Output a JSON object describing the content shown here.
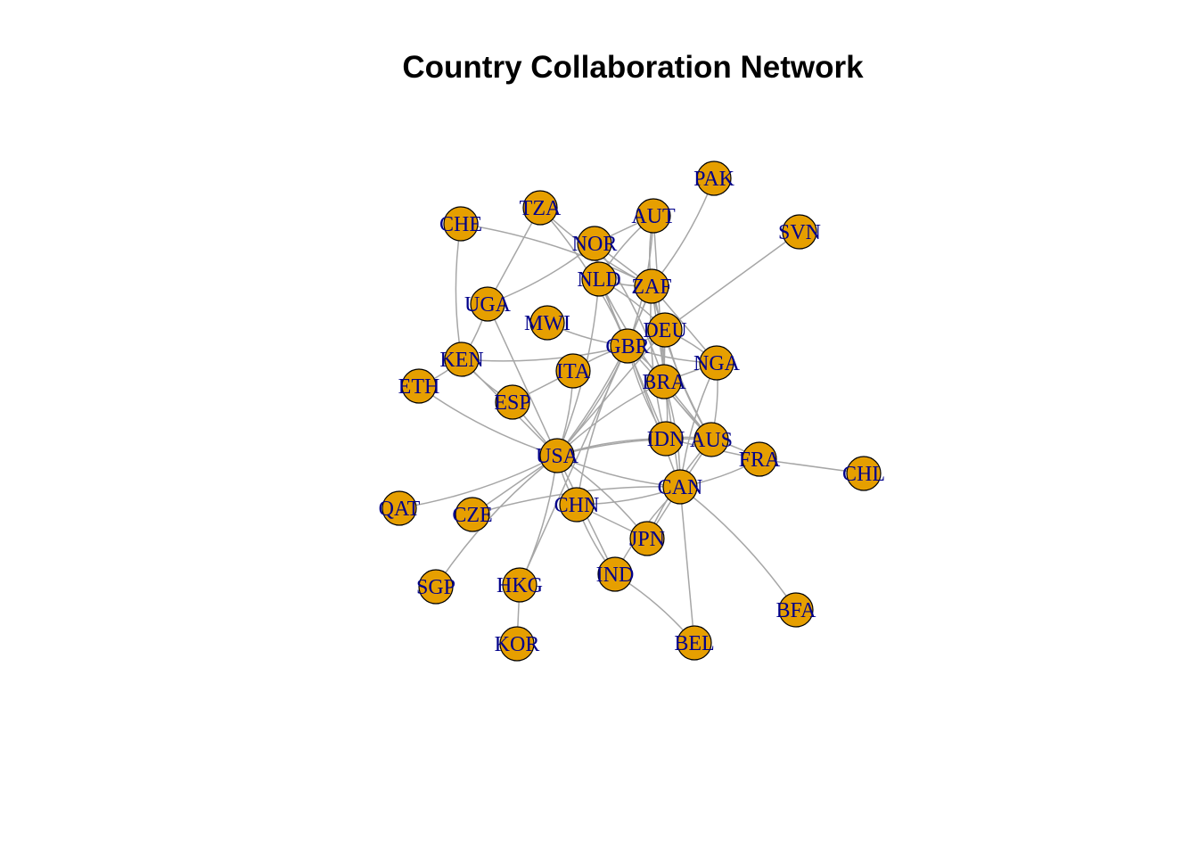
{
  "title": "Country Collaboration Network",
  "colors": {
    "node_fill": "#e69f00",
    "label": "#00008b",
    "edge": "#a6a6a6"
  },
  "nodes": [
    {
      "id": "PAK",
      "label": "PAK"
    },
    {
      "id": "TZA",
      "label": "TZA"
    },
    {
      "id": "AUT",
      "label": "AUT"
    },
    {
      "id": "CHE",
      "label": "CHE"
    },
    {
      "id": "SVN",
      "label": "SVN"
    },
    {
      "id": "NOR",
      "label": "NOR"
    },
    {
      "id": "NLD",
      "label": "NLD"
    },
    {
      "id": "ZAF",
      "label": "ZAF"
    },
    {
      "id": "UGA",
      "label": "UGA"
    },
    {
      "id": "MWI",
      "label": "MWI"
    },
    {
      "id": "DEU",
      "label": "DEU"
    },
    {
      "id": "GBR",
      "label": "GBR"
    },
    {
      "id": "KEN",
      "label": "KEN"
    },
    {
      "id": "NGA",
      "label": "NGA"
    },
    {
      "id": "ITA",
      "label": "ITA"
    },
    {
      "id": "ETH",
      "label": "ETH"
    },
    {
      "id": "BRA",
      "label": "BRA"
    },
    {
      "id": "ESP",
      "label": "ESP"
    },
    {
      "id": "IDN",
      "label": "IDN"
    },
    {
      "id": "AUS",
      "label": "AUS"
    },
    {
      "id": "USA",
      "label": "USA"
    },
    {
      "id": "FRA",
      "label": "FRA"
    },
    {
      "id": "CHL",
      "label": "CHL"
    },
    {
      "id": "CAN",
      "label": "CAN"
    },
    {
      "id": "QAT",
      "label": "QAT"
    },
    {
      "id": "CZE",
      "label": "CZE"
    },
    {
      "id": "CHN",
      "label": "CHN"
    },
    {
      "id": "JPN",
      "label": "JPN"
    },
    {
      "id": "IND",
      "label": "IND"
    },
    {
      "id": "SGP",
      "label": "SGP"
    },
    {
      "id": "HKG",
      "label": "HKG"
    },
    {
      "id": "BFA",
      "label": "BFA"
    },
    {
      "id": "KOR",
      "label": "KOR"
    },
    {
      "id": "BEL",
      "label": "BEL"
    }
  ],
  "edges": [
    [
      "PAK",
      "ZAF"
    ],
    [
      "SVN",
      "DEU"
    ],
    [
      "CHE",
      "KEN"
    ],
    [
      "CHE",
      "ZAF"
    ],
    [
      "TZA",
      "UGA"
    ],
    [
      "TZA",
      "ZAF"
    ],
    [
      "TZA",
      "GBR"
    ],
    [
      "AUT",
      "NOR"
    ],
    [
      "AUT",
      "ZAF"
    ],
    [
      "AUT",
      "GBR"
    ],
    [
      "AUT",
      "BRA"
    ],
    [
      "AUT",
      "NLD"
    ],
    [
      "NOR",
      "UGA"
    ],
    [
      "NOR",
      "ZAF"
    ],
    [
      "NOR",
      "GBR"
    ],
    [
      "NOR",
      "BRA"
    ],
    [
      "NLD",
      "GBR"
    ],
    [
      "NLD",
      "ZAF"
    ],
    [
      "NLD",
      "DEU"
    ],
    [
      "NLD",
      "IDN"
    ],
    [
      "NLD",
      "AUS"
    ],
    [
      "NLD",
      "USA"
    ],
    [
      "ZAF",
      "GBR"
    ],
    [
      "ZAF",
      "DEU"
    ],
    [
      "ZAF",
      "BRA"
    ],
    [
      "ZAF",
      "NGA"
    ],
    [
      "ZAF",
      "AUS"
    ],
    [
      "ZAF",
      "USA"
    ],
    [
      "ZAF",
      "CAN"
    ],
    [
      "ZAF",
      "IDN"
    ],
    [
      "UGA",
      "KEN"
    ],
    [
      "UGA",
      "USA"
    ],
    [
      "MWI",
      "GBR"
    ],
    [
      "DEU",
      "GBR"
    ],
    [
      "DEU",
      "BRA"
    ],
    [
      "DEU",
      "AUS"
    ],
    [
      "DEU",
      "NGA"
    ],
    [
      "DEU",
      "USA"
    ],
    [
      "GBR",
      "ITA"
    ],
    [
      "GBR",
      "BRA"
    ],
    [
      "GBR",
      "AUS"
    ],
    [
      "GBR",
      "IDN"
    ],
    [
      "GBR",
      "USA"
    ],
    [
      "GBR",
      "CAN"
    ],
    [
      "GBR",
      "NGA"
    ],
    [
      "GBR",
      "KEN"
    ],
    [
      "GBR",
      "HKG"
    ],
    [
      "GBR",
      "CHN"
    ],
    [
      "KEN",
      "ETH"
    ],
    [
      "KEN",
      "USA"
    ],
    [
      "KEN",
      "ESP"
    ],
    [
      "NGA",
      "AUS"
    ],
    [
      "NGA",
      "BRA"
    ],
    [
      "NGA",
      "CAN"
    ],
    [
      "ITA",
      "USA"
    ],
    [
      "ITA",
      "ESP"
    ],
    [
      "ETH",
      "USA"
    ],
    [
      "BRA",
      "IDN"
    ],
    [
      "BRA",
      "AUS"
    ],
    [
      "BRA",
      "USA"
    ],
    [
      "BRA",
      "CAN"
    ],
    [
      "ESP",
      "USA"
    ],
    [
      "IDN",
      "USA"
    ],
    [
      "IDN",
      "AUS"
    ],
    [
      "IDN",
      "FRA"
    ],
    [
      "AUS",
      "USA"
    ],
    [
      "AUS",
      "FRA"
    ],
    [
      "AUS",
      "CAN"
    ],
    [
      "AUS",
      "JPN"
    ],
    [
      "FRA",
      "CAN"
    ],
    [
      "FRA",
      "CHL"
    ],
    [
      "USA",
      "CAN"
    ],
    [
      "USA",
      "QAT"
    ],
    [
      "USA",
      "CZE"
    ],
    [
      "USA",
      "CHN"
    ],
    [
      "USA",
      "JPN"
    ],
    [
      "USA",
      "IND"
    ],
    [
      "USA",
      "SGP"
    ],
    [
      "USA",
      "HKG"
    ],
    [
      "CAN",
      "JPN"
    ],
    [
      "CAN",
      "IND"
    ],
    [
      "CAN",
      "BFA"
    ],
    [
      "CAN",
      "BEL"
    ],
    [
      "CAN",
      "CZE"
    ],
    [
      "CAN",
      "CHN"
    ],
    [
      "CHN",
      "JPN"
    ],
    [
      "CHN",
      "IND"
    ],
    [
      "IND",
      "BEL"
    ],
    [
      "HKG",
      "KOR"
    ]
  ]
}
